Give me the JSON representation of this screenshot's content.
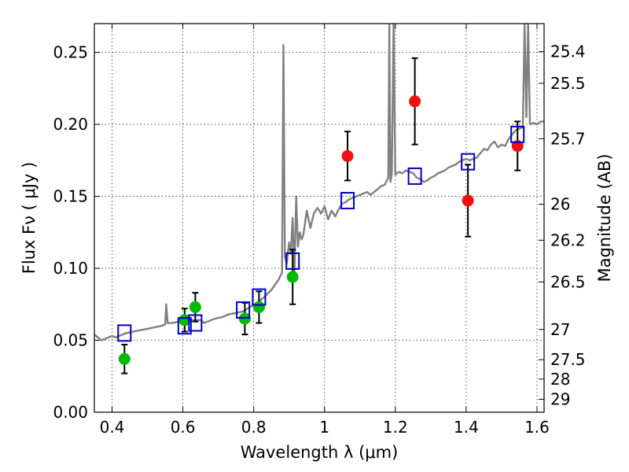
{
  "chart_data": {
    "type": "scatter",
    "xlabel": "Wavelength  λ (μm)",
    "ylabel": "Flux  Fν  ( μJy )",
    "y2label": "Magnitude (AB)",
    "xlim": [
      0.35,
      1.62
    ],
    "ylim": [
      0.0,
      0.27
    ],
    "grid": true,
    "x_ticks": [
      {
        "value": 0.4,
        "label": "0.4"
      },
      {
        "value": 0.6,
        "label": "0.6"
      },
      {
        "value": 0.8,
        "label": "0.8"
      },
      {
        "value": 1.0,
        "label": "1"
      },
      {
        "value": 1.2,
        "label": "1.2"
      },
      {
        "value": 1.4,
        "label": "1.4"
      },
      {
        "value": 1.6,
        "label": "1.6"
      }
    ],
    "y_ticks": [
      {
        "value": 0.0,
        "label": "0.00"
      },
      {
        "value": 0.05,
        "label": "0.05"
      },
      {
        "value": 0.1,
        "label": "0.10"
      },
      {
        "value": 0.15,
        "label": "0.15"
      },
      {
        "value": 0.2,
        "label": "0.20"
      },
      {
        "value": 0.25,
        "label": "0.25"
      }
    ],
    "y2_ticks": [
      {
        "flux": 0.2505,
        "label": "25.4"
      },
      {
        "flux": 0.2285,
        "label": "25.5"
      },
      {
        "flux": 0.19,
        "label": "25.7"
      },
      {
        "flux": 0.1445,
        "label": "26"
      },
      {
        "flux": 0.1195,
        "label": "26.2"
      },
      {
        "flux": 0.0905,
        "label": "26.5"
      },
      {
        "flux": 0.0575,
        "label": "27"
      },
      {
        "flux": 0.0365,
        "label": "27.5"
      },
      {
        "flux": 0.023,
        "label": "28"
      },
      {
        "flux": 0.009,
        "label": "29"
      }
    ],
    "colors": {
      "model": "#808080",
      "green": "#00bb00",
      "red": "#ee1111",
      "box": "#0000cc",
      "errorbar": "#000000"
    },
    "series": [
      {
        "kind": "line",
        "points": [
          [
            0.35,
            0.054
          ],
          [
            0.36,
            0.052
          ],
          [
            0.37,
            0.05
          ],
          [
            0.38,
            0.051
          ],
          [
            0.39,
            0.052
          ],
          [
            0.4,
            0.053
          ],
          [
            0.41,
            0.052
          ],
          [
            0.42,
            0.053
          ],
          [
            0.43,
            0.054
          ],
          [
            0.44,
            0.055
          ],
          [
            0.46,
            0.056
          ],
          [
            0.48,
            0.057
          ],
          [
            0.5,
            0.058
          ],
          [
            0.52,
            0.059
          ],
          [
            0.54,
            0.06
          ],
          [
            0.55,
            0.061
          ],
          [
            0.553,
            0.075
          ],
          [
            0.557,
            0.062
          ],
          [
            0.57,
            0.062
          ],
          [
            0.59,
            0.063
          ],
          [
            0.61,
            0.064
          ],
          [
            0.63,
            0.064
          ],
          [
            0.65,
            0.064
          ],
          [
            0.66,
            0.062
          ],
          [
            0.67,
            0.063
          ],
          [
            0.69,
            0.065
          ],
          [
            0.71,
            0.066
          ],
          [
            0.73,
            0.068
          ],
          [
            0.75,
            0.069
          ],
          [
            0.77,
            0.07
          ],
          [
            0.79,
            0.073
          ],
          [
            0.81,
            0.076
          ],
          [
            0.83,
            0.08
          ],
          [
            0.85,
            0.085
          ],
          [
            0.87,
            0.092
          ],
          [
            0.88,
            0.097
          ],
          [
            0.884,
            0.255
          ],
          [
            0.888,
            0.108
          ],
          [
            0.893,
            0.103
          ],
          [
            0.9,
            0.118
          ],
          [
            0.905,
            0.11
          ],
          [
            0.91,
            0.135
          ],
          [
            0.915,
            0.095
          ],
          [
            0.92,
            0.15
          ],
          [
            0.925,
            0.115
          ],
          [
            0.93,
            0.125
          ],
          [
            0.935,
            0.12
          ],
          [
            0.94,
            0.123
          ],
          [
            0.95,
            0.14
          ],
          [
            0.96,
            0.128
          ],
          [
            0.97,
            0.138
          ],
          [
            0.98,
            0.142
          ],
          [
            0.99,
            0.138
          ],
          [
            1.0,
            0.143
          ],
          [
            1.01,
            0.134
          ],
          [
            1.02,
            0.14
          ],
          [
            1.03,
            0.136
          ],
          [
            1.04,
            0.141
          ],
          [
            1.05,
            0.145
          ],
          [
            1.06,
            0.146
          ],
          [
            1.07,
            0.148
          ],
          [
            1.08,
            0.149
          ],
          [
            1.09,
            0.15
          ],
          [
            1.1,
            0.151
          ],
          [
            1.11,
            0.152
          ],
          [
            1.12,
            0.153
          ],
          [
            1.13,
            0.151
          ],
          [
            1.14,
            0.153
          ],
          [
            1.15,
            0.155
          ],
          [
            1.16,
            0.157
          ],
          [
            1.17,
            0.158
          ],
          [
            1.18,
            0.163
          ],
          [
            1.183,
            0.27
          ],
          [
            1.186,
            0.16
          ],
          [
            1.19,
            0.165
          ],
          [
            1.195,
            0.27
          ],
          [
            1.2,
            0.165
          ],
          [
            1.21,
            0.167
          ],
          [
            1.22,
            0.166
          ],
          [
            1.23,
            0.168
          ],
          [
            1.24,
            0.167
          ],
          [
            1.25,
            0.166
          ],
          [
            1.26,
            0.163
          ],
          [
            1.27,
            0.162
          ],
          [
            1.28,
            0.16
          ],
          [
            1.29,
            0.161
          ],
          [
            1.3,
            0.163
          ],
          [
            1.31,
            0.164
          ],
          [
            1.32,
            0.166
          ],
          [
            1.33,
            0.167
          ],
          [
            1.34,
            0.168
          ],
          [
            1.35,
            0.17
          ],
          [
            1.36,
            0.171
          ],
          [
            1.37,
            0.172
          ],
          [
            1.38,
            0.174
          ],
          [
            1.39,
            0.175
          ],
          [
            1.4,
            0.176
          ],
          [
            1.41,
            0.175
          ],
          [
            1.42,
            0.176
          ],
          [
            1.43,
            0.177
          ],
          [
            1.44,
            0.18
          ],
          [
            1.45,
            0.183
          ],
          [
            1.46,
            0.182
          ],
          [
            1.47,
            0.186
          ],
          [
            1.48,
            0.188
          ],
          [
            1.49,
            0.184
          ],
          [
            1.5,
            0.186
          ],
          [
            1.51,
            0.185
          ],
          [
            1.52,
            0.19
          ],
          [
            1.53,
            0.193
          ],
          [
            1.54,
            0.196
          ],
          [
            1.55,
            0.197
          ],
          [
            1.56,
            0.198
          ],
          [
            1.565,
            0.27
          ],
          [
            1.57,
            0.205
          ],
          [
            1.575,
            0.27
          ],
          [
            1.58,
            0.2
          ],
          [
            1.59,
            0.201
          ],
          [
            1.6,
            0.2
          ],
          [
            1.61,
            0.202
          ],
          [
            1.62,
            0.202
          ]
        ]
      },
      {
        "kind": "points",
        "color": "green",
        "points": [
          {
            "x": 0.435,
            "y": 0.037,
            "err": 0.01
          },
          {
            "x": 0.605,
            "y": 0.064,
            "err": 0.008
          },
          {
            "x": 0.635,
            "y": 0.073,
            "err": 0.01
          },
          {
            "x": 0.775,
            "y": 0.065,
            "err": 0.011
          },
          {
            "x": 0.815,
            "y": 0.073,
            "err": 0.011
          },
          {
            "x": 0.91,
            "y": 0.094,
            "err": 0.019
          }
        ]
      },
      {
        "kind": "points",
        "color": "red",
        "points": [
          {
            "x": 1.065,
            "y": 0.178,
            "err": 0.017
          },
          {
            "x": 1.255,
            "y": 0.216,
            "err": 0.03
          },
          {
            "x": 1.405,
            "y": 0.147,
            "err": 0.025
          },
          {
            "x": 1.545,
            "y": 0.185,
            "err": 0.017
          }
        ]
      },
      {
        "kind": "boxes",
        "color": "box",
        "points": [
          {
            "x": 0.435,
            "y": 0.055
          },
          {
            "x": 0.605,
            "y": 0.06
          },
          {
            "x": 0.635,
            "y": 0.062
          },
          {
            "x": 0.77,
            "y": 0.071
          },
          {
            "x": 0.815,
            "y": 0.08
          },
          {
            "x": 0.91,
            "y": 0.105
          },
          {
            "x": 1.065,
            "y": 0.147
          },
          {
            "x": 1.255,
            "y": 0.164
          },
          {
            "x": 1.405,
            "y": 0.174
          },
          {
            "x": 1.545,
            "y": 0.193
          }
        ]
      }
    ]
  }
}
